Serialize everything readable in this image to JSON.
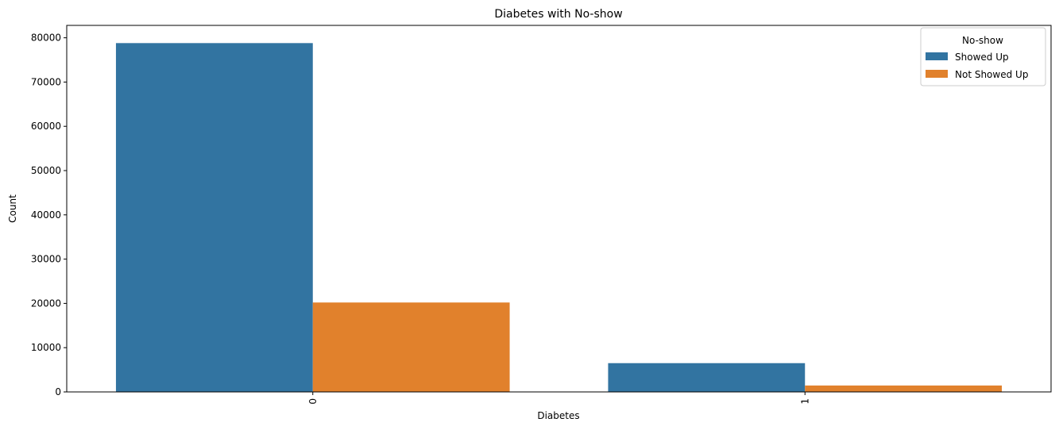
{
  "chart_data": {
    "type": "bar",
    "title": "Diabetes with No-show",
    "xlabel": "Diabetes",
    "ylabel": "Count",
    "categories": [
      "0",
      "1"
    ],
    "ylim": [
      0,
      82800
    ],
    "yticks": [
      0,
      10000,
      20000,
      30000,
      40000,
      50000,
      60000,
      70000,
      80000
    ],
    "grid": false,
    "legend": {
      "title": "No-show",
      "placement": "top-right"
    },
    "series": [
      {
        "name": "Showed Up",
        "color": "#3274a1",
        "values": [
          78800,
          6500
        ]
      },
      {
        "name": "Not Showed Up",
        "color": "#e1812c",
        "values": [
          20200,
          1450
        ]
      }
    ]
  }
}
